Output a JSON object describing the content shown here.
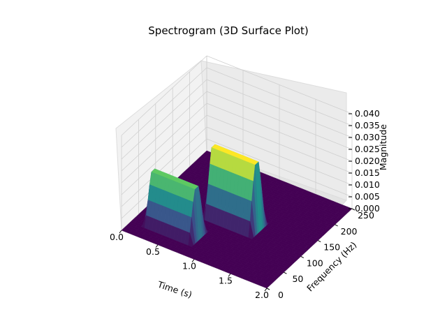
{
  "chart_data": {
    "type": "surface3d",
    "title": "Spectrogram (3D Surface Plot)",
    "xlabel": "Time (s)",
    "ylabel": "Frequency (Hz)",
    "zlabel": "Magnitude",
    "xlim": [
      0,
      2
    ],
    "ylim": [
      0,
      250
    ],
    "zlim": [
      0,
      0.04
    ],
    "x_ticks": [
      "0.0",
      "0.5",
      "1.0",
      "1.5",
      "2.0"
    ],
    "y_ticks": [
      "0",
      "50",
      "100",
      "150",
      "200",
      "250"
    ],
    "z_ticks": [
      "0.000",
      "0.005",
      "0.010",
      "0.015",
      "0.020",
      "0.025",
      "0.030",
      "0.035",
      "0.040"
    ],
    "colormap": "viridis",
    "grid": true,
    "peaks": [
      {
        "time_start": 0.25,
        "time_end": 0.75,
        "frequency": 50,
        "magnitude": 0.021
      },
      {
        "time_start": 0.75,
        "time_end": 1.25,
        "frequency": 120,
        "magnitude": 0.028
      }
    ]
  }
}
